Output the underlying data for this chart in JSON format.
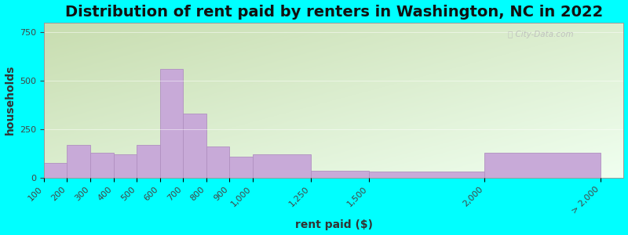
{
  "title": "Distribution of rent paid by renters in Washington, NC in 2022",
  "xlabel": "rent paid ($)",
  "ylabel": "households",
  "bar_color": "#c8aad8",
  "bar_edge_color": "#b090c0",
  "outer_bg": "#00ffff",
  "grad_top_left": "#c8ddb0",
  "grad_bottom_right": "#f0fff0",
  "bin_edges": [
    100,
    200,
    300,
    400,
    500,
    600,
    700,
    800,
    900,
    1000,
    1250,
    1500,
    2000
  ],
  "bin_rights": [
    200,
    300,
    400,
    500,
    600,
    700,
    800,
    900,
    1000,
    1250,
    1500,
    2000,
    2500
  ],
  "values": [
    75,
    170,
    130,
    120,
    170,
    560,
    330,
    160,
    110,
    120,
    35,
    30,
    130
  ],
  "xtick_positions": [
    100,
    200,
    300,
    400,
    500,
    600,
    700,
    800,
    900,
    1000,
    1250,
    1500,
    2000,
    2500
  ],
  "xtick_labels": [
    "100",
    "200",
    "300",
    "400",
    "500",
    "600",
    "700",
    "800",
    "900",
    "1,000",
    "1,250",
    "1,500",
    "2,000",
    "> 2,000"
  ],
  "ylim": [
    0,
    800
  ],
  "xlim": [
    100,
    2600
  ],
  "yticks": [
    0,
    250,
    500,
    750
  ],
  "title_fontsize": 14,
  "axis_label_fontsize": 10,
  "tick_fontsize": 8
}
